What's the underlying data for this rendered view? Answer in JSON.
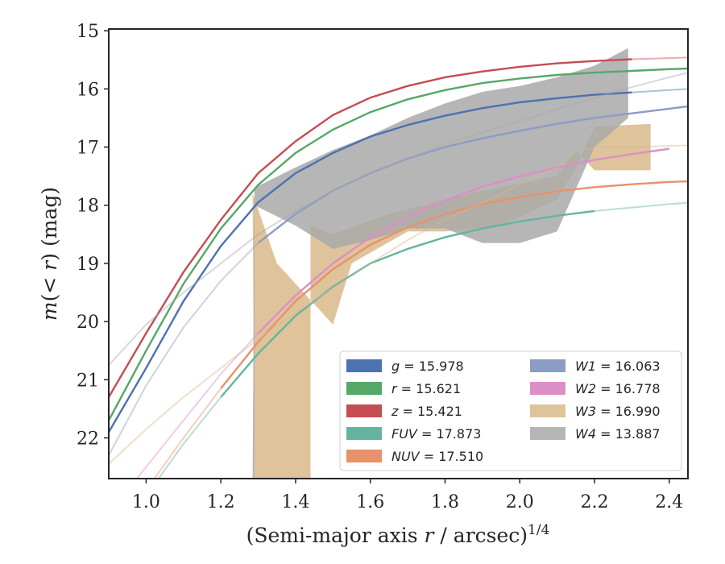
{
  "chart_data": {
    "type": "line",
    "xlabel": "(Semi-major axis r / arcsec)^1/4",
    "ylabel": "m(< r) (mag)",
    "xlim": [
      0.9,
      2.45
    ],
    "ylim": [
      22.7,
      14.97
    ],
    "y_inverted": true,
    "grid": false,
    "legend_position": "lower-right",
    "x_ticks": [
      "1.0",
      "1.2",
      "1.4",
      "1.6",
      "1.8",
      "2.0",
      "2.2",
      "2.4"
    ],
    "y_ticks": [
      "15",
      "16",
      "17",
      "18",
      "19",
      "20",
      "21",
      "22"
    ],
    "series": [
      {
        "name": "g",
        "label": "= 15.978",
        "color": "#4c72b0",
        "curve": [
          [
            0.9,
            21.9
          ],
          [
            1.0,
            20.8
          ],
          [
            1.1,
            19.65
          ],
          [
            1.2,
            18.7
          ],
          [
            1.3,
            17.95
          ],
          [
            1.4,
            17.45
          ],
          [
            1.5,
            17.1
          ],
          [
            1.6,
            16.82
          ],
          [
            1.7,
            16.62
          ],
          [
            1.8,
            16.46
          ],
          [
            1.9,
            16.33
          ],
          [
            2.0,
            16.23
          ],
          [
            2.1,
            16.16
          ],
          [
            2.2,
            16.1
          ],
          [
            2.3,
            16.06
          ],
          [
            2.4,
            16.02
          ],
          [
            2.45,
            16.0
          ]
        ],
        "thick_range": [
          0.9,
          2.3
        ]
      },
      {
        "name": "r",
        "label": "= 15.621",
        "color": "#55a868",
        "curve": [
          [
            0.9,
            21.7
          ],
          [
            1.0,
            20.5
          ],
          [
            1.1,
            19.35
          ],
          [
            1.2,
            18.4
          ],
          [
            1.3,
            17.65
          ],
          [
            1.4,
            17.1
          ],
          [
            1.5,
            16.7
          ],
          [
            1.6,
            16.4
          ],
          [
            1.7,
            16.18
          ],
          [
            1.8,
            16.02
          ],
          [
            1.9,
            15.9
          ],
          [
            2.0,
            15.82
          ],
          [
            2.1,
            15.76
          ],
          [
            2.2,
            15.72
          ],
          [
            2.3,
            15.69
          ],
          [
            2.4,
            15.66
          ],
          [
            2.45,
            15.65
          ]
        ],
        "thick_range": [
          0.9,
          2.45
        ]
      },
      {
        "name": "z",
        "label": "= 15.421",
        "color": "#c44e52",
        "curve": [
          [
            0.9,
            21.3
          ],
          [
            1.0,
            20.2
          ],
          [
            1.1,
            19.15
          ],
          [
            1.2,
            18.25
          ],
          [
            1.3,
            17.45
          ],
          [
            1.4,
            16.9
          ],
          [
            1.5,
            16.45
          ],
          [
            1.6,
            16.15
          ],
          [
            1.7,
            15.95
          ],
          [
            1.8,
            15.8
          ],
          [
            1.9,
            15.7
          ],
          [
            2.0,
            15.62
          ],
          [
            2.1,
            15.56
          ],
          [
            2.2,
            15.52
          ],
          [
            2.3,
            15.49
          ],
          [
            2.4,
            15.47
          ],
          [
            2.45,
            15.46
          ]
        ],
        "thick_range": [
          0.9,
          2.39
        ]
      },
      {
        "name": "FUV",
        "label": "= 17.873",
        "color": "#64b5a0",
        "curve": [
          [
            1.0,
            23.0
          ],
          [
            1.1,
            22.1
          ],
          [
            1.2,
            21.3
          ],
          [
            1.3,
            20.55
          ],
          [
            1.4,
            19.9
          ],
          [
            1.5,
            19.4
          ],
          [
            1.6,
            19.0
          ],
          [
            1.7,
            18.75
          ],
          [
            1.8,
            18.55
          ],
          [
            1.9,
            18.4
          ],
          [
            2.0,
            18.28
          ],
          [
            2.1,
            18.18
          ],
          [
            2.2,
            18.1
          ],
          [
            2.3,
            18.04
          ],
          [
            2.4,
            17.98
          ],
          [
            2.45,
            17.96
          ]
        ],
        "thick_range": [
          1.11,
          2.28
        ]
      },
      {
        "name": "NUV",
        "label": "= 17.510",
        "color": "#e8926b",
        "curve": [
          [
            1.0,
            22.9
          ],
          [
            1.1,
            22.0
          ],
          [
            1.2,
            21.15
          ],
          [
            1.3,
            20.35
          ],
          [
            1.4,
            19.65
          ],
          [
            1.5,
            19.1
          ],
          [
            1.6,
            18.68
          ],
          [
            1.7,
            18.38
          ],
          [
            1.8,
            18.15
          ],
          [
            1.9,
            17.98
          ],
          [
            2.0,
            17.86
          ],
          [
            2.1,
            17.76
          ],
          [
            2.2,
            17.69
          ],
          [
            2.3,
            17.64
          ],
          [
            2.4,
            17.6
          ],
          [
            2.45,
            17.59
          ]
        ],
        "thick_range": [
          1.11,
          2.45
        ]
      },
      {
        "name": "W1",
        "label": "= 16.063",
        "color": "#8c9dc4",
        "curve": [
          [
            0.9,
            22.3
          ],
          [
            1.0,
            21.1
          ],
          [
            1.1,
            20.1
          ],
          [
            1.2,
            19.3
          ],
          [
            1.3,
            18.65
          ],
          [
            1.4,
            18.15
          ],
          [
            1.5,
            17.75
          ],
          [
            1.6,
            17.45
          ],
          [
            1.7,
            17.2
          ],
          [
            1.8,
            17.0
          ],
          [
            1.9,
            16.85
          ],
          [
            2.0,
            16.72
          ],
          [
            2.1,
            16.6
          ],
          [
            2.2,
            16.5
          ],
          [
            2.3,
            16.42
          ],
          [
            2.4,
            16.34
          ],
          [
            2.45,
            16.3
          ]
        ],
        "thick_range": [
          1.28,
          2.45
        ]
      },
      {
        "name": "W2",
        "label": "= 16.778",
        "color": "#dc8fc6",
        "curve": [
          [
            0.95,
            22.9
          ],
          [
            1.1,
            21.7
          ],
          [
            1.2,
            20.9
          ],
          [
            1.3,
            20.2
          ],
          [
            1.4,
            19.55
          ],
          [
            1.5,
            19.0
          ],
          [
            1.6,
            18.55
          ],
          [
            1.7,
            18.2
          ],
          [
            1.8,
            17.92
          ],
          [
            1.9,
            17.68
          ],
          [
            2.0,
            17.5
          ],
          [
            2.1,
            17.35
          ],
          [
            2.2,
            17.22
          ],
          [
            2.3,
            17.12
          ],
          [
            2.4,
            17.03
          ]
        ],
        "thick_range": [
          1.28,
          2.4
        ]
      },
      {
        "name": "W3",
        "label": "= 16.990",
        "color": "#d9b889",
        "curve": [
          [
            0.9,
            22.45
          ],
          [
            1.0,
            21.85
          ],
          [
            1.1,
            21.3
          ],
          [
            1.2,
            20.8
          ],
          [
            1.3,
            20.3
          ],
          [
            1.4,
            19.85
          ],
          [
            1.5,
            19.42
          ],
          [
            1.6,
            19.0
          ],
          [
            1.7,
            18.6
          ],
          [
            1.8,
            18.25
          ],
          [
            1.9,
            17.95
          ],
          [
            2.0,
            17.65
          ],
          [
            2.1,
            17.35
          ],
          [
            2.15,
            17.08
          ],
          [
            2.2,
            17.0
          ],
          [
            2.3,
            17.0
          ],
          [
            2.45,
            16.97
          ]
        ],
        "band": [
          [
            1.285,
            17.8
          ],
          [
            1.35,
            19.0
          ],
          [
            1.5,
            20.05
          ],
          [
            1.55,
            19.0
          ],
          [
            1.7,
            18.45
          ],
          [
            1.8,
            18.45
          ],
          [
            1.95,
            18.35
          ],
          [
            2.1,
            17.9
          ],
          [
            2.15,
            17.35
          ],
          [
            2.2,
            16.65
          ],
          [
            2.35,
            16.6
          ],
          [
            2.35,
            17.4
          ],
          [
            2.3,
            17.4
          ],
          [
            2.2,
            17.4
          ],
          [
            2.15,
            17.05
          ],
          [
            2.1,
            17.5
          ],
          [
            1.9,
            17.75
          ],
          [
            1.65,
            18.15
          ],
          [
            1.5,
            18.5
          ],
          [
            1.44,
            18.35
          ],
          [
            1.44,
            22.7
          ],
          [
            1.29,
            22.7
          ]
        ],
        "band_range": [
          1.28,
          2.35
        ]
      },
      {
        "name": "W4",
        "label": "= 13.887",
        "color": "#a9a9a9",
        "curve": [
          [
            0.9,
            20.75
          ],
          [
            1.0,
            20.05
          ],
          [
            1.1,
            19.5
          ],
          [
            1.2,
            19.0
          ],
          [
            1.3,
            18.5
          ],
          [
            1.4,
            18.1
          ],
          [
            1.5,
            17.75
          ],
          [
            1.6,
            17.45
          ],
          [
            1.7,
            17.2
          ],
          [
            1.8,
            16.95
          ],
          [
            1.9,
            16.75
          ],
          [
            2.0,
            16.55
          ],
          [
            2.1,
            16.35
          ],
          [
            2.2,
            16.15
          ],
          [
            2.3,
            15.97
          ],
          [
            2.4,
            15.8
          ],
          [
            2.45,
            15.72
          ]
        ],
        "band": [
          [
            1.29,
            17.7
          ],
          [
            1.4,
            17.35
          ],
          [
            1.5,
            17.05
          ],
          [
            1.6,
            16.8
          ],
          [
            1.7,
            16.5
          ],
          [
            1.8,
            16.25
          ],
          [
            1.9,
            16.05
          ],
          [
            2.0,
            15.95
          ],
          [
            2.1,
            15.8
          ],
          [
            2.2,
            15.6
          ],
          [
            2.29,
            15.3
          ],
          [
            2.29,
            16.5
          ],
          [
            2.2,
            17.0
          ],
          [
            2.1,
            18.45
          ],
          [
            2.0,
            18.65
          ],
          [
            1.9,
            18.65
          ],
          [
            1.8,
            18.4
          ],
          [
            1.7,
            18.4
          ],
          [
            1.6,
            18.6
          ],
          [
            1.5,
            18.75
          ],
          [
            1.4,
            18.35
          ],
          [
            1.29,
            18.0
          ],
          [
            1.29,
            22.7
          ],
          [
            1.285,
            22.7
          ]
        ],
        "band_range": [
          1.28,
          2.29
        ]
      }
    ]
  }
}
